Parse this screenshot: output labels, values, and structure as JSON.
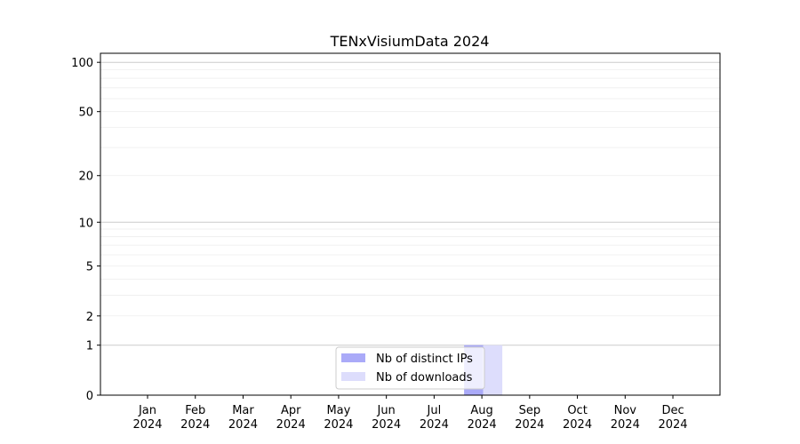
{
  "chart_data": {
    "type": "bar",
    "title": "TENxVisiumData 2024",
    "xlabel": "",
    "ylabel": "",
    "y_scale": "log(1+y)",
    "yticks": [
      0,
      1,
      2,
      5,
      10,
      20,
      50,
      100
    ],
    "ylim": [
      0,
      113
    ],
    "grid": true,
    "legend_position": "bottom-center",
    "categories": [
      "Jan\n2024",
      "Feb\n2024",
      "Mar\n2024",
      "Apr\n2024",
      "May\n2024",
      "Jun\n2024",
      "Jul\n2024",
      "Aug\n2024",
      "Sep\n2024",
      "Oct\n2024",
      "Nov\n2024",
      "Dec\n2024"
    ],
    "series": [
      {
        "name": "Nb of distinct IPs",
        "color": "#aaaaf8",
        "values": [
          0,
          0,
          0,
          0,
          0,
          0,
          0,
          1,
          0,
          0,
          0,
          0
        ]
      },
      {
        "name": "Nb of downloads",
        "color": "#ddddfc",
        "values": [
          0,
          0,
          0,
          0,
          0,
          0,
          0,
          1,
          0,
          0,
          0,
          0
        ]
      }
    ]
  }
}
